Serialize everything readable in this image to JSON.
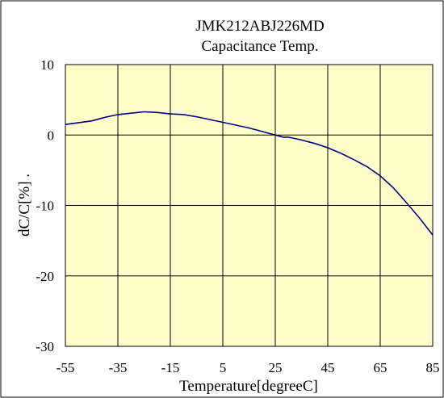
{
  "chart_data": {
    "type": "line",
    "title": "JMK212ABJ226MD",
    "subtitle": "Capacitance Temp.",
    "xlabel": "Temperature[degreeC]",
    "ylabel": "dC/C[%] .",
    "xlim": [
      -55,
      85
    ],
    "ylim": [
      -30,
      10
    ],
    "xticks": [
      "-55",
      "-35",
      "-15",
      "5",
      "25",
      "45",
      "65",
      "85"
    ],
    "yticks": [
      "10",
      "0",
      "-10",
      "-20",
      "-30"
    ],
    "grid": true,
    "colors": {
      "plot_bg": "#ffffcc",
      "line": "#000080",
      "grid": "#000000"
    },
    "series": [
      {
        "x": [
          -55,
          -45,
          -40,
          -35,
          -30,
          -25,
          -20,
          -15,
          -10,
          -5,
          0,
          5,
          10,
          15,
          20,
          25,
          28,
          30,
          35,
          40,
          45,
          50,
          55,
          60,
          65,
          70,
          75,
          80,
          85
        ],
        "y": [
          1.5,
          2.0,
          2.5,
          2.9,
          3.1,
          3.3,
          3.2,
          3.0,
          2.9,
          2.6,
          2.2,
          1.8,
          1.4,
          1.0,
          0.5,
          0.0,
          -0.3,
          -0.3,
          -0.7,
          -1.2,
          -1.8,
          -2.6,
          -3.5,
          -4.5,
          -5.8,
          -7.5,
          -9.6,
          -11.8,
          -14.2
        ]
      }
    ]
  }
}
